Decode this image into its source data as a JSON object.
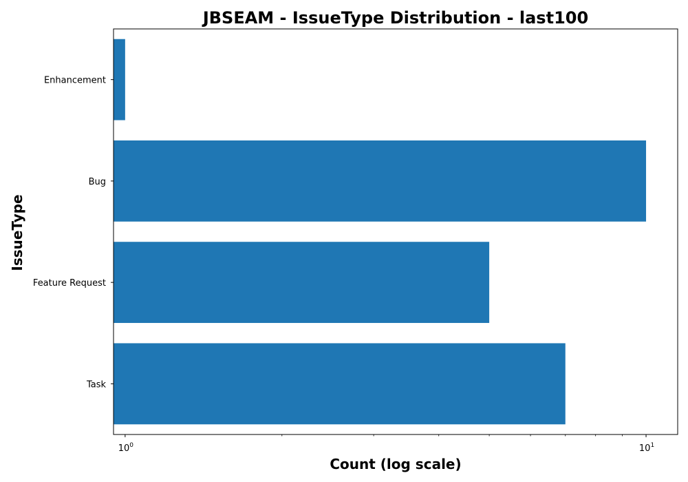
{
  "chart_data": {
    "type": "bar",
    "orientation": "horizontal",
    "title": "JBSEAM - IssueType Distribution - last100",
    "xlabel": "Count (log scale)",
    "ylabel": "IssueType",
    "x_scale": "log",
    "xlim": [
      0.95,
      11.5
    ],
    "x_ticks": [
      {
        "base": "10",
        "exp": "0"
      },
      {
        "base": "10",
        "exp": "1"
      }
    ],
    "categories": [
      "Enhancement",
      "Bug",
      "Feature Request",
      "Task"
    ],
    "values": [
      1,
      10,
      5,
      7
    ],
    "bar_color": "#1f77b4",
    "grid": false,
    "legend": "none"
  }
}
